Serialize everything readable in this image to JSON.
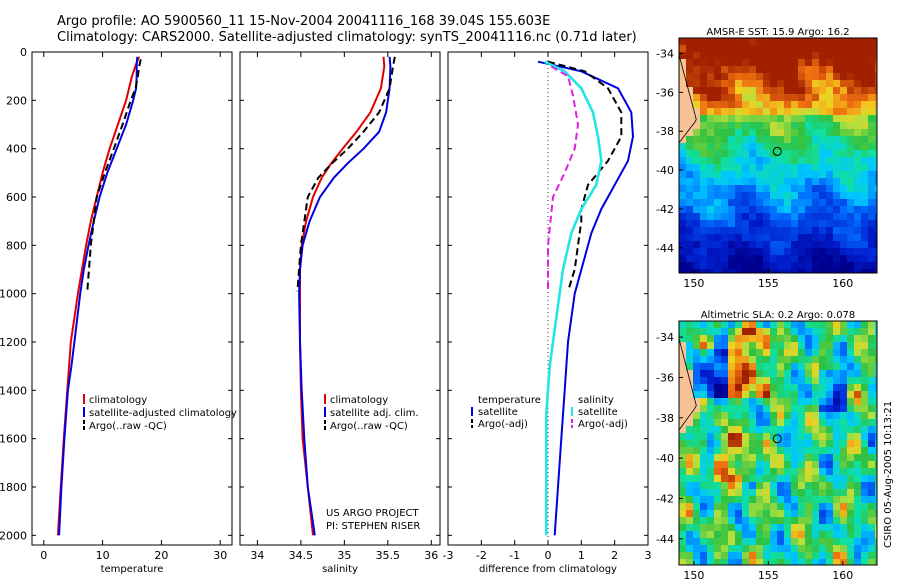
{
  "header": {
    "line1": "Argo profile: AO 5900560_11 15-Nov-2004 20041116_168 39.04S 155.603E",
    "line2": "Climatology: CARS2000. Satellite-adjusted climatology: synTS_20041116.nc (0.71d later)"
  },
  "credit": {
    "line1": "US ARGO PROJECT",
    "line2": "PI: STEPHEN RISER"
  },
  "stamp": "CSIRO 05-Aug-2005 10:13:21",
  "colors": {
    "climatology": "#e00000",
    "satellite": "#0000e0",
    "argo": "#000000",
    "sat_diff_salinity": "#22e5e5",
    "argo_diff_salinity": "#e020e0",
    "land": "#f7c294"
  },
  "chart_data": [
    {
      "type": "line",
      "id": "temperature",
      "xlabel": "temperature",
      "ylabel": "",
      "xlim": [
        -2,
        32
      ],
      "ylim": [
        2040,
        0
      ],
      "xticks": [
        0,
        10,
        20,
        30
      ],
      "yticks": [
        0,
        200,
        400,
        600,
        800,
        1000,
        1200,
        1400,
        1600,
        1800,
        2000
      ],
      "legend": [
        "climatology",
        "satellite-adjusted climatology",
        "Argo(..raw -QC)"
      ],
      "legend_position": "lower-right",
      "series": [
        {
          "name": "climatology",
          "color": "#e00000",
          "dash": "solid",
          "x": [
            16.2,
            15.7,
            15.0,
            14.0,
            12.6,
            11.2,
            10.0,
            9.0,
            8.0,
            7.2,
            6.5,
            5.8,
            5.2,
            4.6,
            4.0,
            3.4,
            2.9,
            2.4
          ],
          "y": [
            20,
            50,
            100,
            200,
            300,
            400,
            500,
            600,
            700,
            800,
            900,
            1000,
            1100,
            1200,
            1400,
            1600,
            1800,
            2000
          ]
        },
        {
          "name": "satellite-adjusted climatology",
          "color": "#0000e0",
          "dash": "solid",
          "x": [
            15.9,
            15.8,
            15.8,
            15.7,
            15.2,
            14.0,
            12.4,
            10.8,
            9.5,
            8.5,
            7.6,
            6.8,
            6.2,
            5.7,
            5.2,
            4.7,
            4.1,
            3.5,
            3.0,
            2.6
          ],
          "y": [
            20,
            50,
            100,
            150,
            200,
            300,
            400,
            500,
            600,
            700,
            800,
            900,
            1000,
            1100,
            1200,
            1300,
            1400,
            1600,
            1800,
            2000
          ]
        },
        {
          "name": "Argo(..raw -QC)",
          "color": "#000000",
          "dash": "dash",
          "x": [
            16.5,
            16.2,
            16.0,
            15.6,
            14.8,
            13.4,
            11.9,
            10.4,
            9.0,
            8.0,
            7.4
          ],
          "y": [
            30,
            60,
            100,
            150,
            200,
            300,
            400,
            500,
            600,
            800,
            990
          ]
        }
      ]
    },
    {
      "type": "line",
      "id": "salinity",
      "xlabel": "salinity",
      "ylabel": "",
      "xlim": [
        33.8,
        36.1
      ],
      "ylim": [
        2040,
        0
      ],
      "xticks": [
        34,
        34.5,
        35,
        35.5,
        36
      ],
      "legend": [
        "climatology",
        "satellite adj. clim.",
        "Argo(..raw -QC)"
      ],
      "legend_position": "lower-right",
      "series": [
        {
          "name": "climatology",
          "color": "#e00000",
          "dash": "solid",
          "x": [
            35.45,
            35.46,
            35.42,
            35.3,
            35.14,
            34.98,
            34.85,
            34.74,
            34.64,
            34.56,
            34.51,
            34.49,
            34.49,
            34.49,
            34.5,
            34.52,
            34.55,
            34.58,
            34.61,
            34.64
          ],
          "y": [
            20,
            60,
            150,
            250,
            330,
            400,
            460,
            520,
            600,
            700,
            800,
            900,
            1000,
            1200,
            1400,
            1600,
            1700,
            1800,
            1900,
            2000
          ]
        },
        {
          "name": "satellite adj. clim.",
          "color": "#0000e0",
          "dash": "solid",
          "x": [
            35.52,
            35.53,
            35.52,
            35.48,
            35.4,
            35.22,
            35.04,
            34.88,
            34.72,
            34.6,
            34.52,
            34.49,
            34.48,
            34.49,
            34.51,
            34.54,
            34.58,
            34.62,
            34.66
          ],
          "y": [
            20,
            60,
            150,
            250,
            330,
            400,
            460,
            520,
            600,
            700,
            800,
            900,
            1000,
            1200,
            1400,
            1600,
            1800,
            1900,
            2000
          ]
        },
        {
          "name": "Argo(..raw -QC)",
          "color": "#000000",
          "dash": "dash",
          "x": [
            35.58,
            35.56,
            35.52,
            35.4,
            35.22,
            35.04,
            34.86,
            34.7,
            34.58,
            34.5,
            34.46
          ],
          "y": [
            20,
            60,
            150,
            250,
            330,
            400,
            460,
            520,
            600,
            800,
            990
          ]
        }
      ]
    },
    {
      "type": "line",
      "id": "difference",
      "xlabel": "difference from climatology",
      "ylabel": "",
      "xlim": [
        -3,
        3
      ],
      "ylim": [
        2040,
        0
      ],
      "xticks": [
        -3,
        -2,
        -1,
        0,
        1,
        2,
        3
      ],
      "legend": [
        "temperature",
        "satellite",
        "Argo(-adj)",
        "salinity",
        "satellite",
        "Argo(-adj)"
      ],
      "legend_position": "lower-center",
      "series": [
        {
          "name": "satellite",
          "group": "temperature",
          "color": "#0000e0",
          "dash": "solid",
          "x": [
            -0.3,
            1.0,
            2.1,
            2.5,
            2.55,
            2.4,
            2.0,
            1.6,
            1.3,
            1.1,
            0.8,
            0.6,
            0.5,
            0.4,
            0.3,
            0.2
          ],
          "y": [
            40,
            80,
            150,
            250,
            350,
            450,
            550,
            650,
            750,
            850,
            1000,
            1200,
            1400,
            1600,
            1800,
            2000
          ]
        },
        {
          "name": "Argo(-adj)",
          "group": "temperature",
          "color": "#000000",
          "dash": "dash",
          "x": [
            0.0,
            1.1,
            1.8,
            2.2,
            2.2,
            1.8,
            1.2,
            1.0,
            1.0,
            0.9,
            0.8,
            0.6
          ],
          "y": [
            40,
            80,
            150,
            250,
            350,
            450,
            550,
            650,
            700,
            800,
            900,
            990
          ]
        },
        {
          "name": "satellite",
          "group": "salinity",
          "color": "#22e5e5",
          "dash": "solid",
          "x": [
            -0.1,
            0.5,
            1.0,
            1.35,
            1.5,
            1.6,
            1.45,
            1.0,
            0.7,
            0.45,
            0.25,
            0.05,
            -0.05,
            -0.05,
            -0.05
          ],
          "y": [
            40,
            80,
            150,
            250,
            350,
            450,
            550,
            650,
            750,
            900,
            1100,
            1300,
            1500,
            1800,
            2000
          ]
        },
        {
          "name": "Argo(-adj)",
          "group": "salinity",
          "color": "#e020e0",
          "dash": "dash",
          "x": [
            0.1,
            0.6,
            0.75,
            0.9,
            0.8,
            0.5,
            0.15,
            0.0,
            0.0
          ],
          "y": [
            60,
            100,
            180,
            300,
            400,
            500,
            600,
            800,
            990
          ]
        }
      ]
    }
  ],
  "maps": [
    {
      "id": "sst",
      "title": "AMSR-E SST: 15.9 Argo: 16.2",
      "xticks": [
        150,
        155,
        160
      ],
      "yticks": [
        -34,
        -36,
        -38,
        -40,
        -42,
        -44
      ],
      "xlim": [
        149,
        162.3
      ],
      "ylim": [
        -45.3,
        -33.2
      ],
      "marker": [
        155.603,
        -39.04
      ]
    },
    {
      "id": "sla",
      "title": "Altimetric SLA: 0.2 Argo: 0.078",
      "xticks": [
        150,
        155,
        160
      ],
      "yticks": [
        -34,
        -36,
        -38,
        -40,
        -42,
        -44
      ],
      "xlim": [
        149,
        162.3
      ],
      "ylim": [
        -45.3,
        -33.2
      ],
      "marker": [
        155.603,
        -39.04
      ]
    }
  ]
}
